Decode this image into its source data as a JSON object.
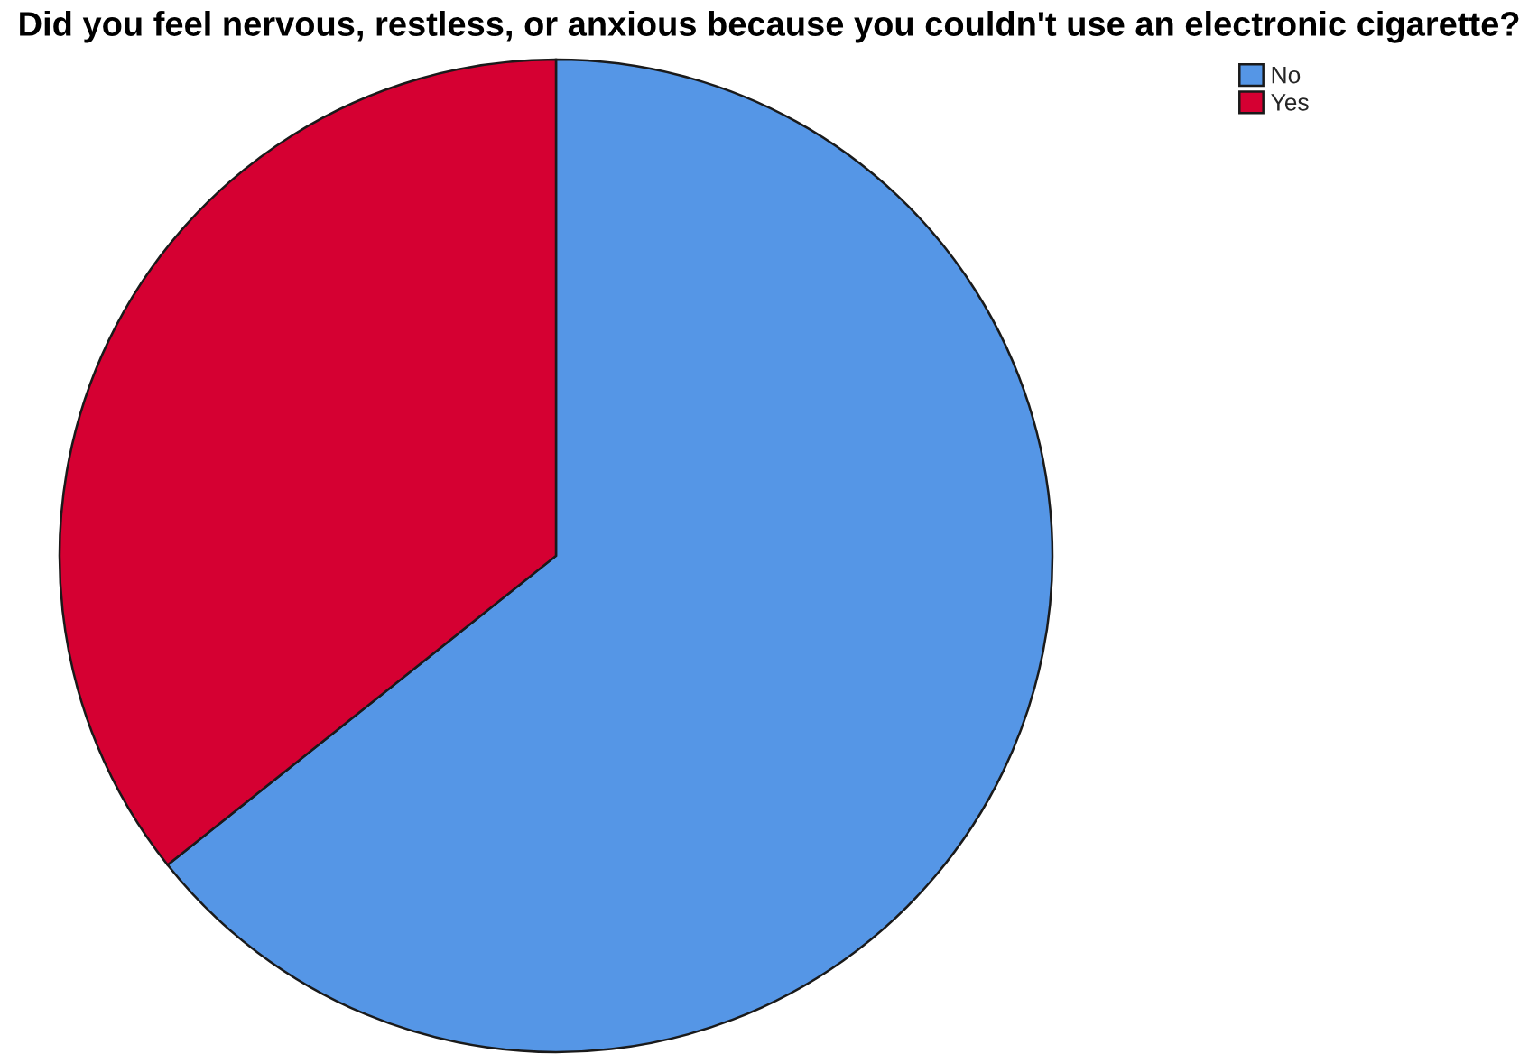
{
  "chart_data": {
    "type": "pie",
    "title": "Did you feel nervous, restless, or anxious because you couldn't use an electronic cigarette?",
    "categories": [
      "No",
      "Yes"
    ],
    "values": [
      64.3,
      35.7
    ],
    "colors": [
      "#5596e6",
      "#d50032"
    ],
    "legend": "top right"
  }
}
